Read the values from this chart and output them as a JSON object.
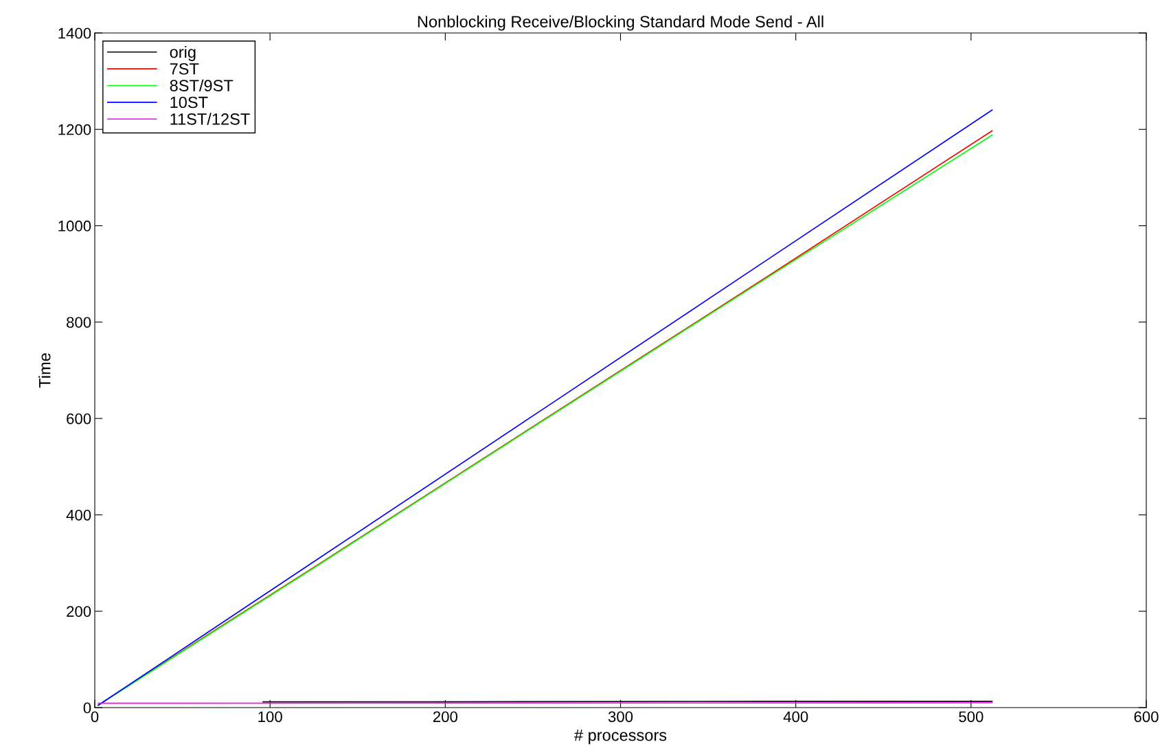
{
  "chart_data": {
    "type": "line",
    "title": "Nonblocking Receive/Blocking Standard Mode Send - All",
    "xlabel": "# processors",
    "ylabel": "Time",
    "xlim": [
      0,
      600
    ],
    "xticks": [
      0,
      100,
      200,
      300,
      400,
      500,
      600
    ],
    "ylim": [
      0,
      1400
    ],
    "yticks": [
      0,
      200,
      400,
      600,
      800,
      1000,
      1200,
      1400
    ],
    "grid": false,
    "legend": "top left",
    "marker": "none",
    "line_style": "solid",
    "series": [
      {
        "name": "orig",
        "color": "#000000",
        "x": [
          96,
          192,
          384,
          512
        ],
        "values": [
          12,
          12,
          13,
          13
        ]
      },
      {
        "name": "7ST",
        "color": "#ff0000",
        "x": [
          2,
          64,
          128,
          256,
          384,
          512
        ],
        "values": [
          5,
          150,
          298,
          597,
          895,
          1197
        ]
      },
      {
        "name": "8ST/9ST",
        "color": "#00ff00",
        "x": [
          2,
          64,
          128,
          256,
          384,
          512
        ],
        "values": [
          5,
          149,
          297,
          596,
          893,
          1188
        ]
      },
      {
        "name": "10ST",
        "color": "#0000ff",
        "x": [
          2,
          64,
          128,
          256,
          384,
          512
        ],
        "values": [
          5,
          155,
          310,
          620,
          930,
          1240
        ]
      },
      {
        "name": "11ST/12ST",
        "color": "#ff00ff",
        "x": [
          2,
          512
        ],
        "values": [
          9,
          10
        ]
      }
    ]
  }
}
